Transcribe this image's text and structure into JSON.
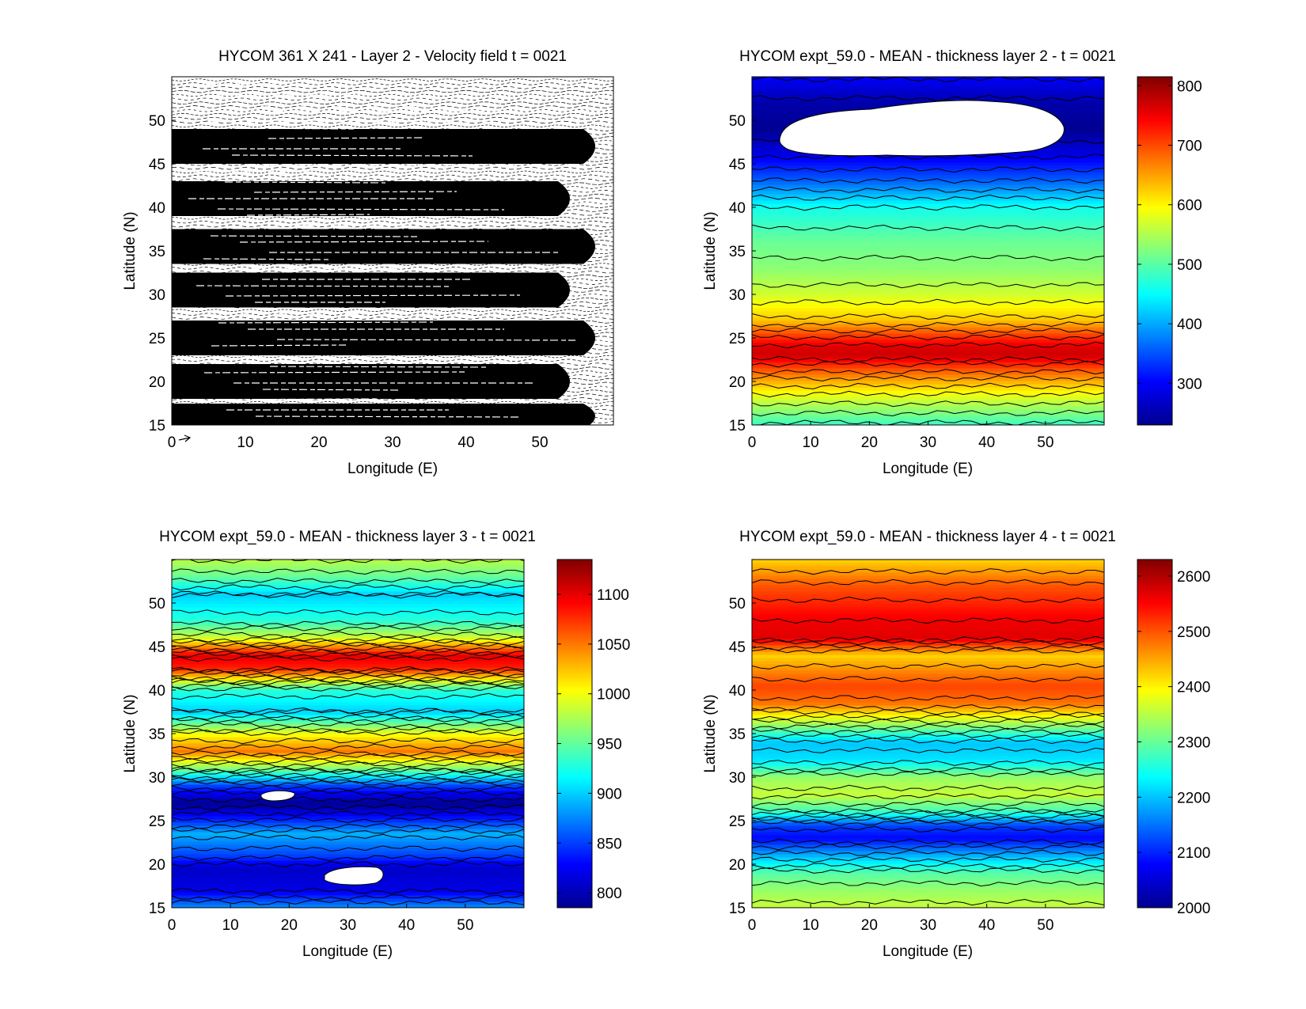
{
  "chart_data": [
    {
      "type": "heatmap",
      "subtype": "quiver",
      "title": "HYCOM 361 X 241 - Layer 2 - Velocity field  t = 0021",
      "xlabel": "Longitude (E)",
      "ylabel": "Latitude (N)",
      "xlim": [
        0,
        60
      ],
      "ylim": [
        15,
        55
      ],
      "xticks": [
        "0",
        "10",
        "20",
        "30",
        "40",
        "50"
      ],
      "yticks": [
        "15",
        "20",
        "25",
        "30",
        "35",
        "40",
        "45",
        "50"
      ],
      "band_centers_lat": [
        47,
        41,
        35.5,
        30.5,
        25,
        20,
        16
      ],
      "colorbar": null
    },
    {
      "type": "heatmap",
      "subtype": "filled-contour",
      "title": "HYCOM expt_59.0 - MEAN - thickness layer 2 - t = 0021",
      "xlabel": "Longitude (E)",
      "ylabel": "Latitude (N)",
      "xlim": [
        0,
        60
      ],
      "ylim": [
        15,
        55
      ],
      "xticks": [
        "0",
        "10",
        "20",
        "30",
        "40",
        "50"
      ],
      "yticks": [
        "15",
        "20",
        "25",
        "30",
        "35",
        "40",
        "45",
        "50"
      ],
      "clim": [
        230,
        815
      ],
      "colorbar_ticks": [
        "300",
        "400",
        "500",
        "600",
        "700",
        "800"
      ],
      "profile_lat": [
        15,
        18,
        20,
        22,
        23,
        24,
        25.5,
        27,
        30,
        33,
        36,
        40,
        43,
        46,
        49,
        52,
        55
      ],
      "profile_value": [
        480,
        570,
        640,
        720,
        770,
        760,
        700,
        630,
        570,
        530,
        510,
        460,
        360,
        290,
        240,
        255,
        300
      ],
      "masked_region": {
        "lon": [
          3,
          51
        ],
        "lat": [
          47.5,
          52.5
        ]
      }
    },
    {
      "type": "heatmap",
      "subtype": "filled-contour",
      "title": "HYCOM expt_59.0 - MEAN - thickness layer 3 - t = 0021",
      "xlabel": "Longitude (E)",
      "ylabel": "Latitude (N)",
      "xlim": [
        0,
        60
      ],
      "ylim": [
        15,
        55
      ],
      "xticks": [
        "0",
        "10",
        "20",
        "30",
        "40",
        "50"
      ],
      "yticks": [
        "15",
        "20",
        "25",
        "30",
        "35",
        "40",
        "45",
        "50"
      ],
      "clim": [
        785,
        1135
      ],
      "colorbar_ticks": [
        "800",
        "850",
        "900",
        "950",
        "1000",
        "1050",
        "1100"
      ],
      "profile_lat": [
        15,
        17,
        19.5,
        21,
        23.5,
        25.5,
        27,
        29,
        31,
        33,
        35,
        37.5,
        40,
        42.5,
        44,
        46,
        48,
        51,
        53,
        55
      ],
      "profile_value": [
        880,
        820,
        810,
        850,
        890,
        830,
        790,
        850,
        960,
        1050,
        1000,
        900,
        930,
        1080,
        1100,
        990,
        930,
        900,
        950,
        980
      ],
      "masked_region": {
        "lon": [
          26,
          36
        ],
        "lat": [
          18.5,
          21
        ]
      }
    },
    {
      "type": "heatmap",
      "subtype": "filled-contour",
      "title": "HYCOM expt_59.0 - MEAN - thickness layer 4 - t = 0021",
      "xlabel": "Longitude (E)",
      "ylabel": "Latitude (N)",
      "xlim": [
        0,
        60
      ],
      "ylim": [
        15,
        55
      ],
      "xticks": [
        "0",
        "10",
        "20",
        "30",
        "40",
        "50"
      ],
      "yticks": [
        "15",
        "20",
        "25",
        "30",
        "35",
        "40",
        "45",
        "50"
      ],
      "clim": [
        2000,
        2630
      ],
      "colorbar_ticks": [
        "2000",
        "2100",
        "2200",
        "2300",
        "2400",
        "2500",
        "2600"
      ],
      "profile_lat": [
        15,
        17,
        19,
        21,
        23,
        24.5,
        26,
        28,
        30,
        32,
        34,
        36,
        38.5,
        40.5,
        42.5,
        44,
        46,
        48,
        50,
        52,
        55
      ],
      "profile_value": [
        2360,
        2330,
        2290,
        2190,
        2080,
        2120,
        2270,
        2360,
        2330,
        2220,
        2200,
        2330,
        2480,
        2510,
        2460,
        2420,
        2570,
        2560,
        2530,
        2500,
        2420
      ]
    }
  ]
}
